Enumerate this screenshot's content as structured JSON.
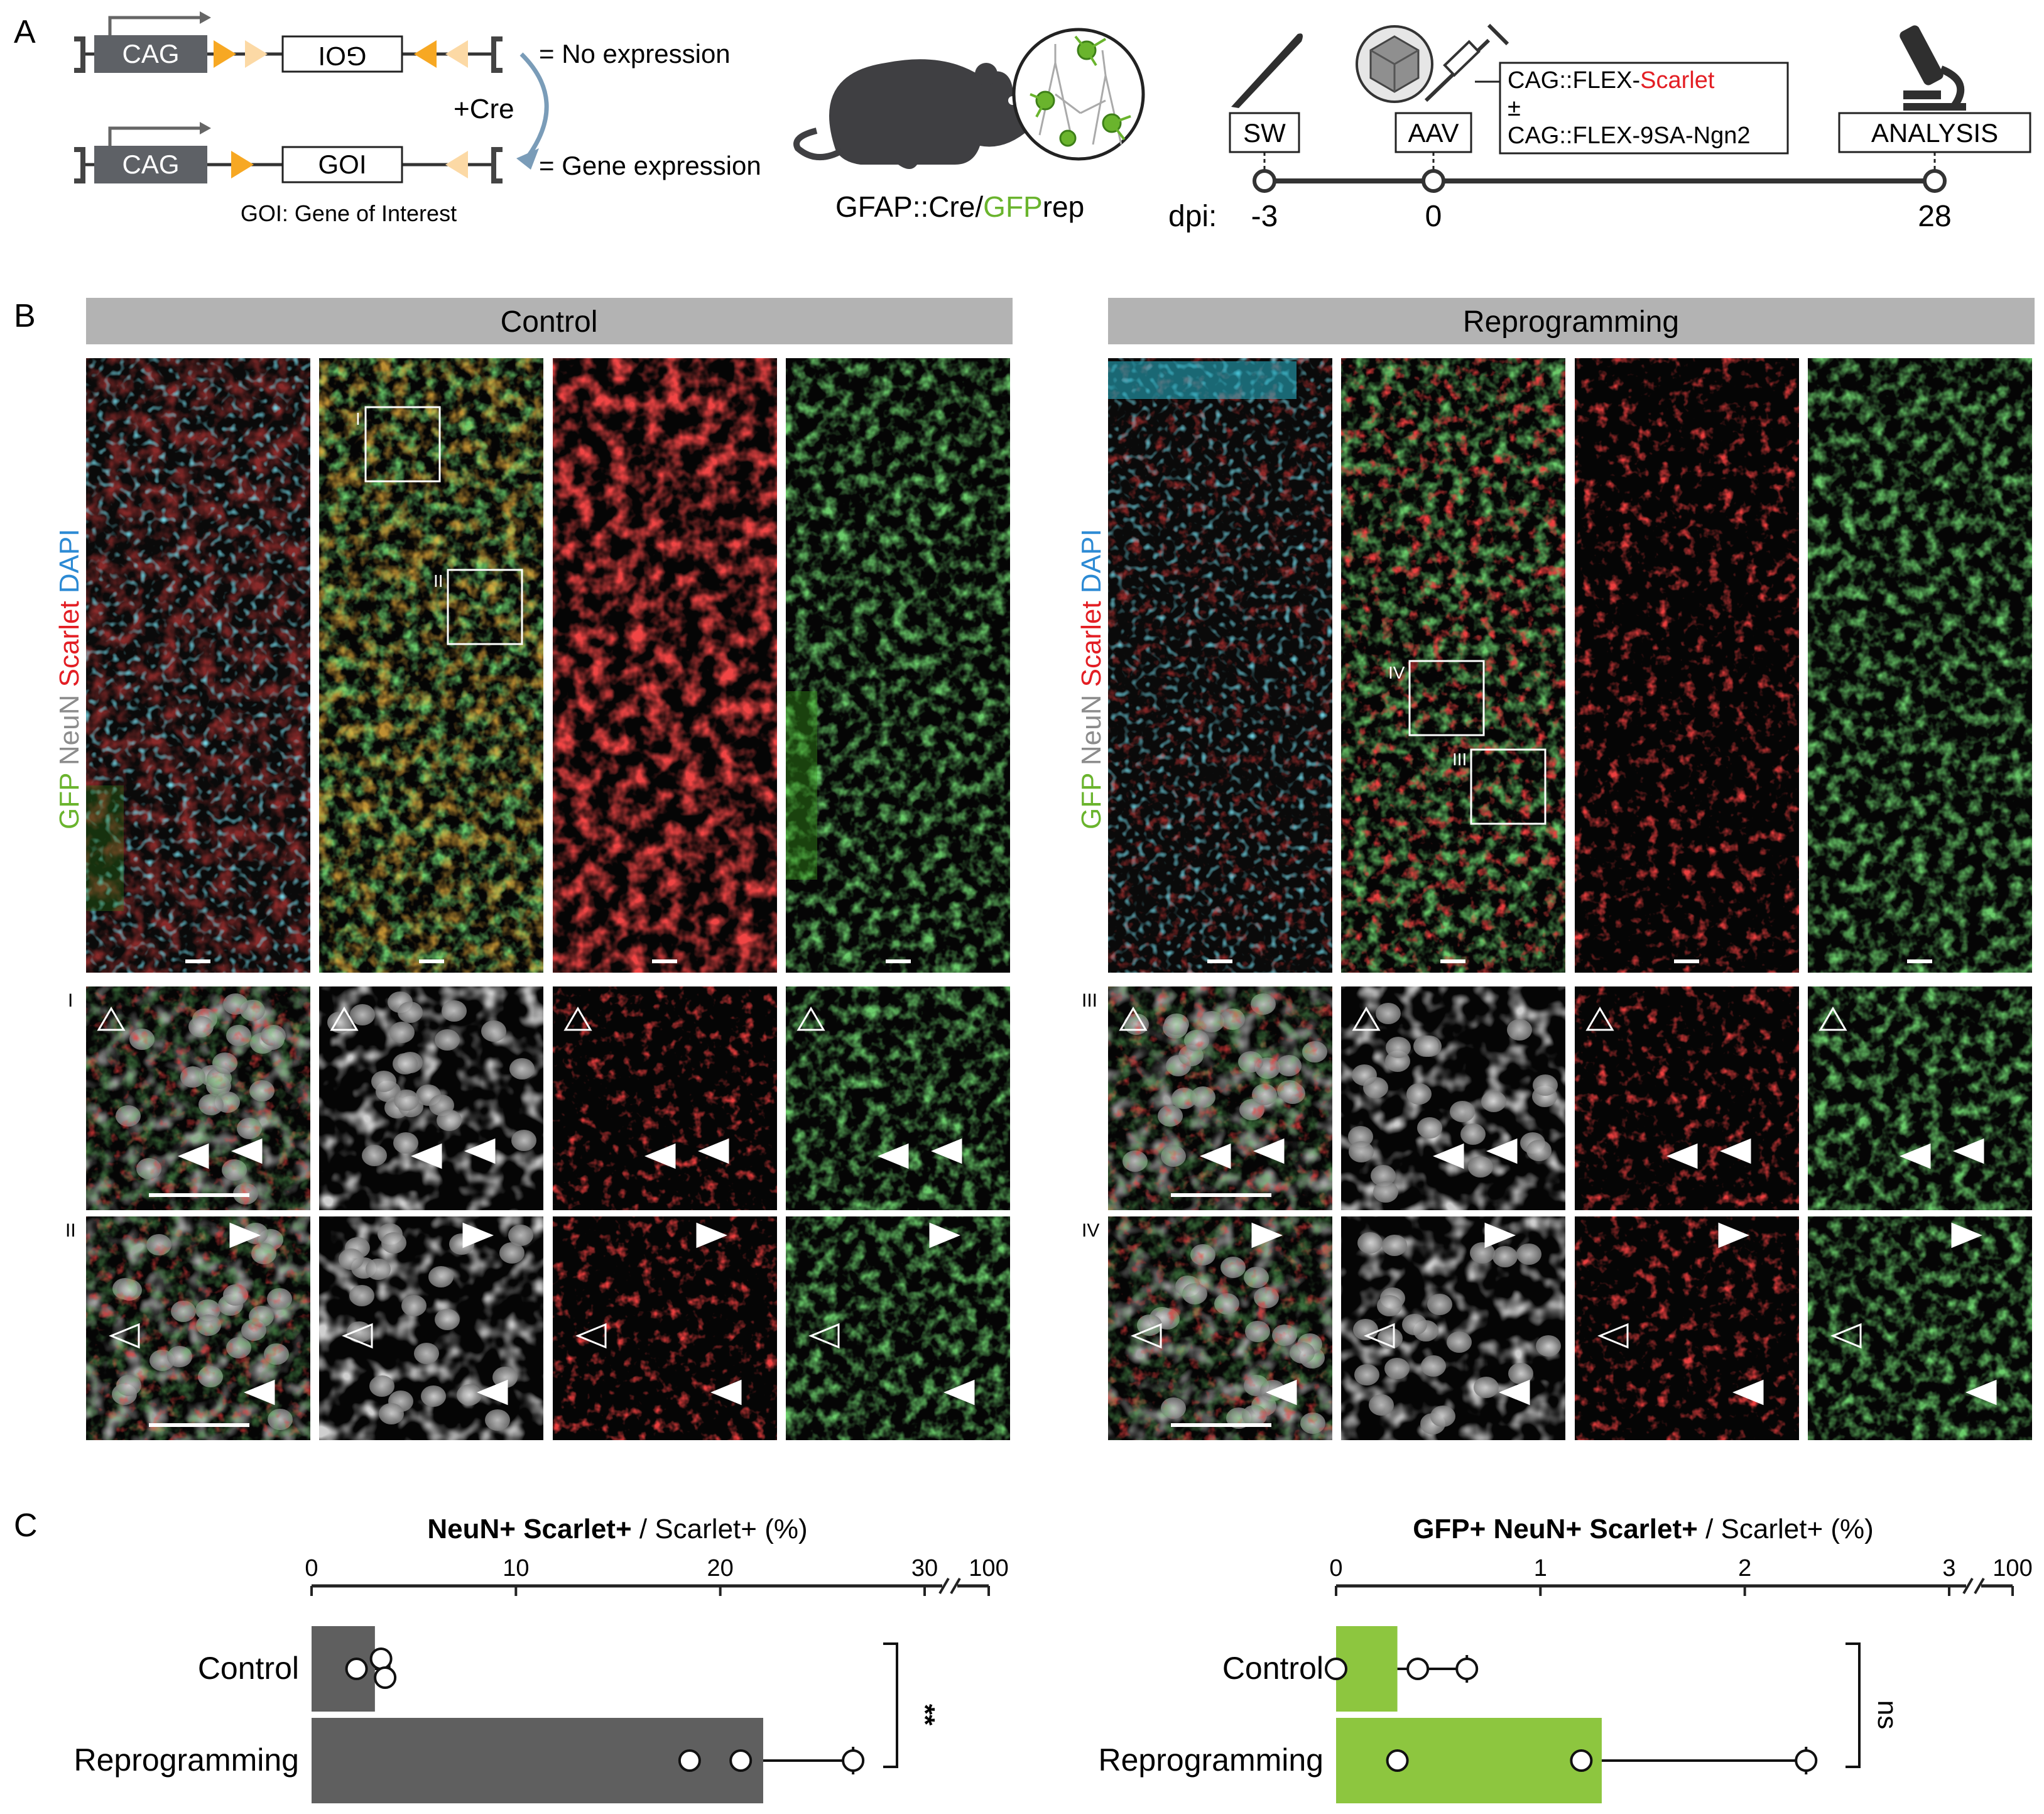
{
  "panel_a": {
    "label": "A",
    "construct": {
      "cag": "CAG",
      "goi": "GOI",
      "no_expression": "= No expression",
      "gene_expression": "= Gene expression",
      "cre": "+Cre",
      "goi_legend": "GOI: Gene of Interest"
    },
    "mouse": {
      "prefix": "GFAP::Cre/",
      "gfp": "GFP",
      "suffix": "rep"
    },
    "timeline": {
      "sw": "SW",
      "aav": "AAV",
      "analysis": "ANALYSIS",
      "virus_line1_prefix": "CAG::FLEX-",
      "virus_line1_red": "Scarlet",
      "virus_pm": "±",
      "virus_line2": "CAG::FLEX-9SA-Ngn2",
      "dpi_label": "dpi:",
      "ticks": [
        "-3",
        "0",
        "28"
      ]
    }
  },
  "panel_b": {
    "label": "B",
    "control_title": "Control",
    "reprogramming_title": "Reprogramming",
    "channel_label": {
      "gfp": "GFP",
      "neun": "NeuN",
      "scarlet": "Scarlet",
      "dapi": "DAPI"
    },
    "roi_control": [
      "I",
      "II"
    ],
    "roi_reprogramming": [
      "IV",
      "III"
    ],
    "row_labels_control": [
      "I",
      "II"
    ],
    "row_labels_reprogramming": [
      "III",
      "IV"
    ]
  },
  "panel_c": {
    "label": "C",
    "chart_data": [
      {
        "type": "bar",
        "title_bold": "NeuN+ Scarlet+",
        "title_rest": " / Scarlet+ (%)",
        "categories": [
          "Control",
          "Reprogramming"
        ],
        "values": [
          3.1,
          22.1
        ],
        "error_upper": [
          3.8,
          26.5
        ],
        "points": [
          [
            2.2,
            3.4,
            3.6
          ],
          [
            18.5,
            21.0,
            26.5
          ]
        ],
        "xticks": [
          "0",
          "10",
          "20",
          "30",
          "100"
        ],
        "xlim": [
          0,
          30
        ],
        "bar_color": "#5f5f5f",
        "significance": "**"
      },
      {
        "type": "bar",
        "title_bold": "GFP+ NeuN+ Scarlet+",
        "title_rest": " / Scarlet+ (%)",
        "categories": [
          "Control",
          "Reprogramming"
        ],
        "values": [
          0.3,
          1.3
        ],
        "error_upper": [
          0.64,
          2.3
        ],
        "points": [
          [
            0.0,
            0.4,
            0.64
          ],
          [
            0.3,
            1.2,
            2.3
          ]
        ],
        "xticks": [
          "0",
          "1",
          "2",
          "3",
          "100"
        ],
        "xlim": [
          0,
          3
        ],
        "bar_color": "#8dc63f",
        "significance": "ns"
      }
    ]
  },
  "colors": {
    "scarlet": "#e31e24",
    "gfp": "#6ab42d",
    "dapi": "#2c8ad4",
    "neun": "#8c8c8c"
  }
}
